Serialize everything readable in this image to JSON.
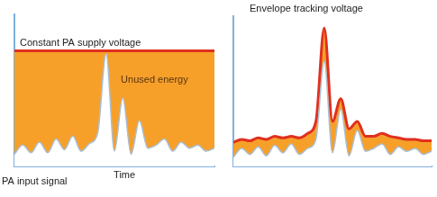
{
  "chart_data": [
    {
      "type": "line",
      "x": [
        0,
        1,
        2,
        3,
        4,
        5,
        6,
        7,
        8,
        9,
        10,
        11,
        12,
        13,
        14,
        15,
        16,
        17,
        18,
        19,
        20,
        21,
        22,
        23,
        24
      ],
      "xlim": [
        0,
        24
      ],
      "ylim": [
        0,
        100
      ],
      "tick_labels": false,
      "grid": false,
      "x_label": "Time",
      "annotations": [
        "Unused energy"
      ],
      "series": [
        {
          "name": "PA input signal",
          "color": "#a9bfd6",
          "values": [
            8,
            14,
            9,
            16,
            9,
            18,
            11,
            20,
            10,
            15,
            22,
            74,
            10,
            45,
            8,
            30,
            12,
            14,
            18,
            10,
            16,
            12,
            14,
            10,
            12
          ]
        },
        {
          "name": "Constant PA supply voltage",
          "color": "#e0301e",
          "values": [
            76,
            76,
            76,
            76,
            76,
            76,
            76,
            76,
            76,
            76,
            76,
            76,
            76,
            76,
            76,
            76,
            76,
            76,
            76,
            76,
            76,
            76,
            76,
            76,
            76
          ]
        }
      ]
    },
    {
      "type": "line",
      "x": [
        0,
        1,
        2,
        3,
        4,
        5,
        6,
        7,
        8,
        9,
        10,
        11,
        12,
        13,
        14,
        15,
        16,
        17,
        18,
        19,
        20,
        21,
        22,
        23,
        24
      ],
      "xlim": [
        0,
        24
      ],
      "ylim": [
        0,
        100
      ],
      "tick_labels": false,
      "grid": false,
      "series": [
        {
          "color": "#a9bfd6",
          "values": [
            6,
            12,
            8,
            13,
            7,
            14,
            9,
            15,
            8,
            12,
            18,
            70,
            9,
            38,
            7,
            24,
            10,
            12,
            15,
            8,
            13,
            10,
            12,
            8,
            10
          ]
        },
        {
          "name": "Envelope tracking voltage",
          "color": "#e0301e",
          "values": [
            16,
            18,
            17,
            19,
            18,
            20,
            19,
            20,
            19,
            22,
            30,
            92,
            30,
            45,
            25,
            30,
            20,
            20,
            22,
            20,
            19,
            18,
            18,
            17,
            17
          ]
        }
      ]
    }
  ]
}
